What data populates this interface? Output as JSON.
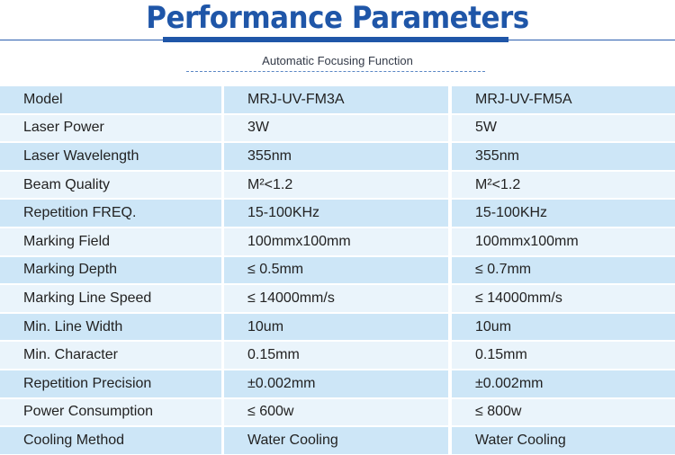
{
  "header": {
    "title": "Performance Parameters",
    "subtitle": "Automatic Focusing Function"
  },
  "table": {
    "rows": [
      [
        "Model",
        "MRJ-UV-FM3A",
        "MRJ-UV-FM5A"
      ],
      [
        "Laser Power",
        "3W",
        "5W"
      ],
      [
        "Laser Wavelength",
        "355nm",
        "355nm"
      ],
      [
        "Beam Quality",
        "M²<1.2",
        "M²<1.2"
      ],
      [
        "Repetition FREQ.",
        "15-100KHz",
        "15-100KHz"
      ],
      [
        "Marking Field",
        "100mmx100mm",
        "100mmx100mm"
      ],
      [
        "Marking Depth",
        "≤ 0.5mm",
        "≤ 0.7mm"
      ],
      [
        "Marking Line Speed",
        "≤ 14000mm/s",
        "≤ 14000mm/s"
      ],
      [
        "Min. Line Width",
        "10um",
        "10um"
      ],
      [
        "Min. Character",
        "0.15mm",
        "0.15mm"
      ],
      [
        "Repetition Precision",
        "±0.002mm",
        "±0.002mm"
      ],
      [
        "Power Consumption",
        "≤ 600w",
        "≤ 800w"
      ],
      [
        "Cooling Method",
        "Water Cooling",
        "Water Cooling"
      ]
    ]
  },
  "colors": {
    "title": "#1f56a8",
    "row_dark": "#cde6f7",
    "row_light": "#eaf4fb"
  }
}
